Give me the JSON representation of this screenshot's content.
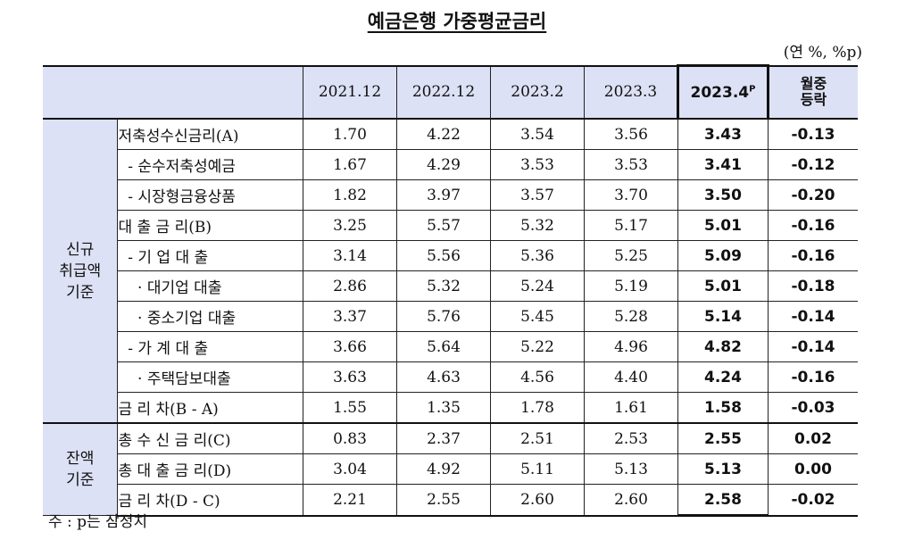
{
  "title": "예금은행 가중평균금리",
  "unit": "(연 %, %p)",
  "header": {
    "cols": [
      "2021.12",
      "2022.12",
      "2023.2",
      "2023.3"
    ],
    "highlight": "2023.4",
    "highlight_sup": "P",
    "change_line1": "월중",
    "change_line2": "등락"
  },
  "groups": {
    "new_lines": [
      "신규",
      "취급액",
      "기준"
    ],
    "bal_lines": [
      "잔액",
      "기준"
    ]
  },
  "rows": [
    {
      "label": "저축성수신금리(A)",
      "v": [
        "1.70",
        "4.22",
        "3.54",
        "3.56"
      ],
      "hl": "3.43",
      "chg": "-0.13"
    },
    {
      "label": "  - 순수저축성예금",
      "v": [
        "1.67",
        "4.29",
        "3.53",
        "3.53"
      ],
      "hl": "3.41",
      "chg": "-0.12"
    },
    {
      "label": "  - 시장형금융상품",
      "v": [
        "1.82",
        "3.97",
        "3.57",
        "3.70"
      ],
      "hl": "3.50",
      "chg": "-0.20"
    },
    {
      "label": "대 출 금 리(B)",
      "v": [
        "3.25",
        "5.57",
        "5.32",
        "5.17"
      ],
      "hl": "5.01",
      "chg": "-0.16"
    },
    {
      "label": "  - 기 업 대 출",
      "v": [
        "3.14",
        "5.56",
        "5.36",
        "5.25"
      ],
      "hl": "5.09",
      "chg": "-0.16"
    },
    {
      "label": "    · 대기업 대출",
      "v": [
        "2.86",
        "5.32",
        "5.24",
        "5.19"
      ],
      "hl": "5.01",
      "chg": "-0.18"
    },
    {
      "label": "    · 중소기업 대출",
      "v": [
        "3.37",
        "5.76",
        "5.45",
        "5.28"
      ],
      "hl": "5.14",
      "chg": "-0.14"
    },
    {
      "label": "  - 가 계 대 출",
      "v": [
        "3.66",
        "5.64",
        "5.22",
        "4.96"
      ],
      "hl": "4.82",
      "chg": "-0.14"
    },
    {
      "label": "    · 주택담보대출",
      "v": [
        "3.63",
        "4.63",
        "4.56",
        "4.40"
      ],
      "hl": "4.24",
      "chg": "-0.16"
    },
    {
      "label": "금 리 차(B - A)",
      "v": [
        "1.55",
        "1.35",
        "1.78",
        "1.61"
      ],
      "hl": "1.58",
      "chg": "-0.03"
    },
    {
      "label": "총 수 신 금 리(C)",
      "v": [
        "0.83",
        "2.37",
        "2.51",
        "2.53"
      ],
      "hl": "2.55",
      "chg": "0.02"
    },
    {
      "label": "총 대 출 금 리(D)",
      "v": [
        "3.04",
        "4.92",
        "5.11",
        "5.13"
      ],
      "hl": "5.13",
      "chg": "0.00"
    },
    {
      "label": "금 리 차(D - C)",
      "v": [
        "2.21",
        "2.55",
        "2.60",
        "2.60"
      ],
      "hl": "2.58",
      "chg": "-0.02"
    }
  ],
  "note": "주 : p는 잠정치"
}
